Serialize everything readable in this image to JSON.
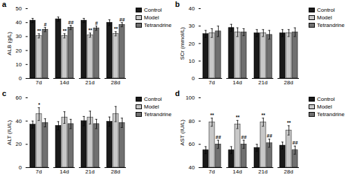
{
  "chart_data": [
    {
      "type": "bar",
      "title": "a",
      "categories": [
        "7d",
        "14d",
        "21d",
        "28d"
      ],
      "ylabel": "ALB (g/L)",
      "ylim": [
        0,
        50
      ],
      "yticks": [
        0,
        10,
        20,
        30,
        40,
        50
      ],
      "legend": "upper right",
      "series": [
        {
          "name": "Control",
          "color": "#1a1a1a",
          "values": [
            41.5,
            42.5,
            41.5,
            40.0
          ],
          "errors": [
            1.5,
            1.5,
            1.5,
            2.0
          ],
          "annotations": [
            null,
            null,
            null,
            null
          ]
        },
        {
          "name": "Model",
          "color": "#c8c8c8",
          "values": [
            30.5,
            30.5,
            31.0,
            32.0
          ],
          "errors": [
            1.5,
            1.5,
            1.5,
            1.5
          ],
          "annotations": [
            "**",
            "**",
            "**",
            "**"
          ]
        },
        {
          "name": "Tetrandrine",
          "color": "#707070",
          "values": [
            35.0,
            36.5,
            36.0,
            38.5
          ],
          "errors": [
            1.5,
            1.5,
            1.5,
            1.5
          ],
          "annotations": [
            "#",
            "##",
            "#",
            "##"
          ]
        }
      ]
    },
    {
      "type": "bar",
      "title": "b",
      "categories": [
        "7d",
        "14d",
        "21d",
        "28d"
      ],
      "ylabel": "SCr (mmol/L)",
      "ylim": [
        0,
        40
      ],
      "yticks": [
        0,
        10,
        20,
        30,
        40
      ],
      "legend": "upper right",
      "series": [
        {
          "name": "Control",
          "color": "#1a1a1a",
          "values": [
            25.5,
            29.0,
            26.0,
            26.0
          ],
          "errors": [
            2.0,
            2.0,
            2.0,
            2.0
          ],
          "annotations": [
            null,
            null,
            null,
            null
          ]
        },
        {
          "name": "Model",
          "color": "#c8c8c8",
          "values": [
            26.0,
            26.5,
            26.0,
            26.0
          ],
          "errors": [
            2.5,
            2.5,
            2.0,
            2.0
          ],
          "annotations": [
            null,
            null,
            null,
            null
          ]
        },
        {
          "name": "Tetrandrine",
          "color": "#707070",
          "values": [
            27.0,
            26.5,
            25.0,
            26.5
          ],
          "errors": [
            3.0,
            2.0,
            2.5,
            2.5
          ],
          "annotations": [
            null,
            null,
            null,
            null
          ]
        }
      ]
    },
    {
      "type": "bar",
      "title": "c",
      "categories": [
        "7d",
        "14d",
        "21d",
        "28d"
      ],
      "ylabel": "ALT (IU/L)",
      "ylim": [
        0,
        60
      ],
      "yticks": [
        0,
        20,
        40,
        60
      ],
      "legend": "upper right",
      "series": [
        {
          "name": "Control",
          "color": "#1a1a1a",
          "values": [
            37.0,
            36.0,
            40.0,
            39.5
          ],
          "errors": [
            3.0,
            3.5,
            4.0,
            4.0
          ],
          "annotations": [
            null,
            null,
            null,
            null
          ]
        },
        {
          "name": "Model",
          "color": "#c8c8c8",
          "values": [
            46.0,
            43.0,
            43.0,
            46.0
          ],
          "errors": [
            5.5,
            5.0,
            5.5,
            6.5
          ],
          "annotations": [
            "*",
            null,
            null,
            null
          ]
        },
        {
          "name": "Tetrandrine",
          "color": "#707070",
          "values": [
            38.5,
            37.5,
            37.5,
            38.5
          ],
          "errors": [
            3.5,
            4.0,
            4.0,
            4.0
          ],
          "annotations": [
            null,
            null,
            null,
            null
          ]
        }
      ]
    },
    {
      "type": "bar",
      "title": "d",
      "categories": [
        "7d",
        "14d",
        "21d",
        "28d"
      ],
      "ylabel": "AST (IU/L)",
      "ylim": [
        40,
        100
      ],
      "yticks": [
        40,
        60,
        80,
        100
      ],
      "legend": "upper right",
      "series": [
        {
          "name": "Control",
          "color": "#1a1a1a",
          "values": [
            55.0,
            55.0,
            57.0,
            59.0
          ],
          "errors": [
            3.0,
            3.0,
            3.0,
            3.0
          ],
          "annotations": [
            null,
            null,
            null,
            null
          ]
        },
        {
          "name": "Model",
          "color": "#c8c8c8",
          "values": [
            79.0,
            77.0,
            79.0,
            72.0
          ],
          "errors": [
            3.5,
            3.5,
            3.5,
            4.0
          ],
          "annotations": [
            "**",
            "**",
            "**",
            "**"
          ]
        },
        {
          "name": "Tetrandrine",
          "color": "#707070",
          "values": [
            60.0,
            60.0,
            61.0,
            55.0
          ],
          "errors": [
            3.5,
            3.5,
            3.5,
            3.5
          ],
          "annotations": [
            "##",
            "##",
            "##",
            "##"
          ]
        }
      ]
    }
  ]
}
